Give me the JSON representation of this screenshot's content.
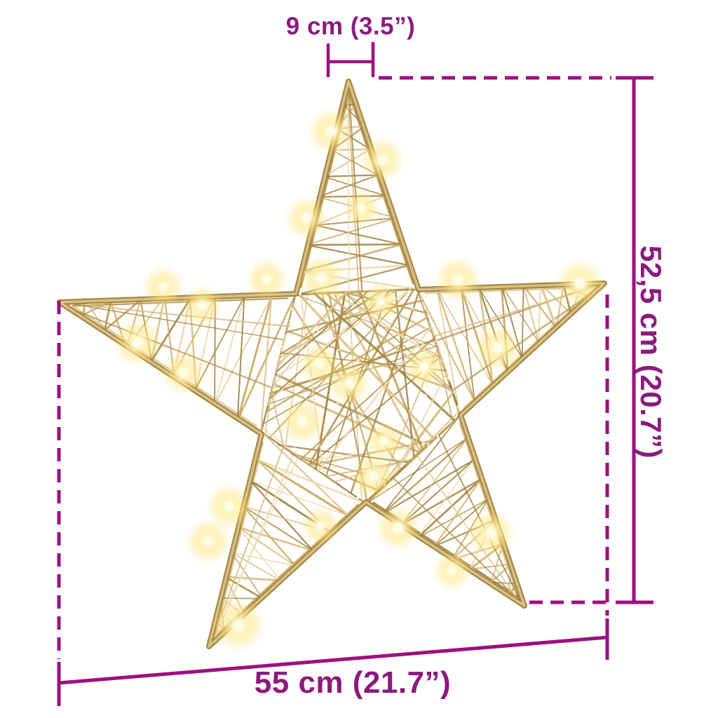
{
  "title": "Gold wire LED star decoration — dimension diagram",
  "dimensions": {
    "top_width": "9 cm (3.5”)",
    "side_height": "52,5 cm (20.7”)",
    "bottom_width": "55 cm (21.7”)"
  },
  "style": {
    "line_color": "#9e0f80",
    "text_color": "#8c1a7e",
    "background": "#ffffff",
    "wire_gold": "#c9a65e",
    "wire_gold_dark": "#a0823e",
    "wire_gold_light": "#d8bf82",
    "led_glow": "#ffe98e",
    "led_core": "#fffce8"
  },
  "led_count": 27
}
